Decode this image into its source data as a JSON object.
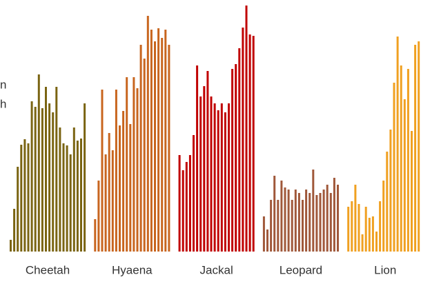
{
  "chart_data": {
    "type": "bar",
    "annotations": [
      "n",
      "h"
    ],
    "ylim": [
      0,
      360
    ],
    "groups": [
      {
        "name": "Cheetah",
        "color": "#7a6412",
        "values": [
          17,
          62,
          123,
          155,
          163,
          157,
          218,
          210,
          257,
          208,
          239,
          215,
          202,
          239,
          180,
          157,
          154,
          141,
          180,
          161,
          164,
          215
        ]
      },
      {
        "name": "Hyaena",
        "color": "#c8651e",
        "values": [
          47,
          103,
          235,
          141,
          172,
          147,
          235,
          183,
          204,
          253,
          185,
          253,
          237,
          300,
          280,
          342,
          322,
          305,
          324,
          310,
          322,
          300
        ]
      },
      {
        "name": "Jackal",
        "color": "#c00000",
        "values": [
          140,
          118,
          130,
          140,
          169,
          270,
          225,
          240,
          262,
          225,
          215,
          205,
          215,
          202,
          215,
          265,
          272,
          295,
          325,
          357,
          315,
          313
        ]
      },
      {
        "name": "Leopard",
        "color": "#a0583a",
        "values": [
          51,
          32,
          75,
          110,
          75,
          103,
          93,
          90,
          75,
          90,
          85,
          75,
          90,
          85,
          119,
          82,
          85,
          90,
          97,
          85,
          107,
          97
        ]
      },
      {
        "name": "Lion",
        "color": "#f0a020",
        "values": [
          65,
          73,
          97,
          69,
          25,
          65,
          49,
          51,
          29,
          73,
          103,
          145,
          177,
          245,
          312,
          270,
          221,
          265,
          175,
          300,
          305,
          200
        ]
      }
    ]
  }
}
